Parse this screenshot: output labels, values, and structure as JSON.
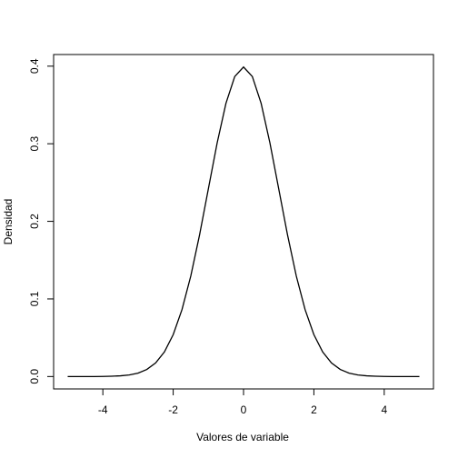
{
  "chart_data": {
    "type": "line",
    "xlabel": "Valores de variable",
    "ylabel": "Densidad",
    "x": [
      -5,
      -4.75,
      -4.5,
      -4.25,
      -4,
      -3.75,
      -3.5,
      -3.25,
      -3,
      -2.75,
      -2.5,
      -2.25,
      -2,
      -1.75,
      -1.5,
      -1.25,
      -1,
      -0.75,
      -0.5,
      -0.25,
      0,
      0.25,
      0.5,
      0.75,
      1,
      1.25,
      1.5,
      1.75,
      2,
      2.25,
      2.5,
      2.75,
      3,
      3.25,
      3.5,
      3.75,
      4,
      4.25,
      4.5,
      4.75,
      5
    ],
    "series": [
      {
        "color": "#000000",
        "values": [
          0,
          0,
          0,
          0,
          0.0001,
          0.0004,
          0.0009,
          0.002,
          0.0044,
          0.0091,
          0.0175,
          0.0317,
          0.054,
          0.0863,
          0.1295,
          0.1826,
          0.242,
          0.3011,
          0.3521,
          0.3867,
          0.3989,
          0.3867,
          0.3521,
          0.3011,
          0.242,
          0.1826,
          0.1295,
          0.0863,
          0.054,
          0.0317,
          0.0175,
          0.0091,
          0.0044,
          0.002,
          0.0009,
          0.0004,
          0.0001,
          0,
          0,
          0,
          0
        ]
      }
    ],
    "xlim": [
      -5.4,
      5.4
    ],
    "ylim": [
      -0.016,
      0.415
    ],
    "xticks": [
      -4,
      -2,
      0,
      2,
      4
    ],
    "yticks": [
      {
        "value": 0,
        "label": "0.0"
      },
      0.1,
      0.2,
      0.3,
      0.4
    ],
    "grid": false
  }
}
